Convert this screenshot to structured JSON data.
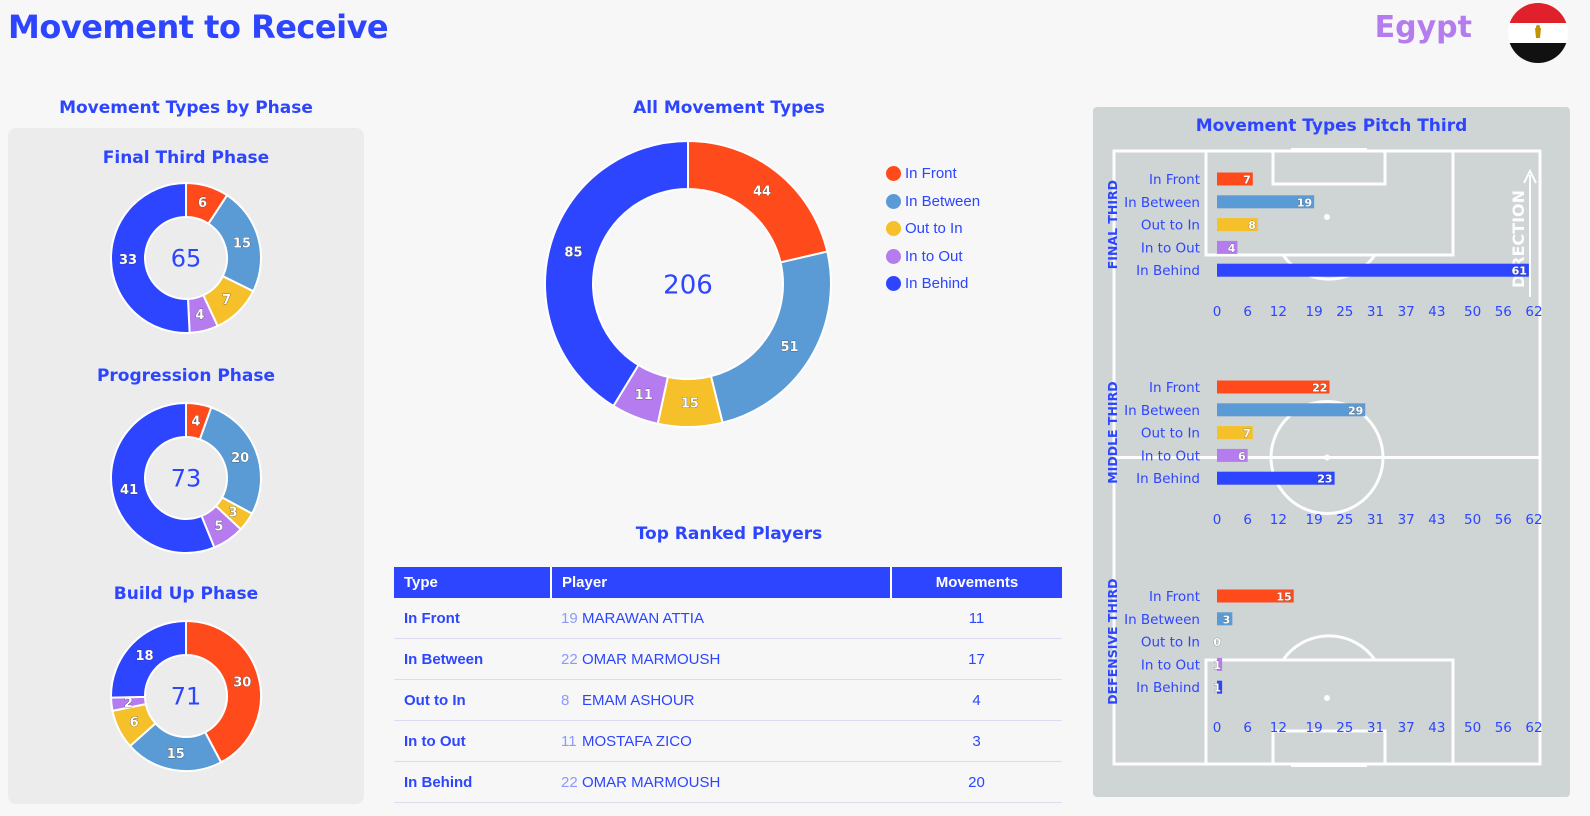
{
  "header": {
    "title": "Movement to Receive",
    "country": "Egypt"
  },
  "sections": {
    "phase_title": "Movement Types by Phase",
    "all_title": "All Movement Types",
    "pitch_title": "Movement Types Pitch Third",
    "players_title": "Top Ranked Players"
  },
  "colors": {
    "in_front": "#ff4a1c",
    "in_between": "#5b9bd5",
    "out_to_in": "#f5c02a",
    "in_to_out": "#b57cf0",
    "in_behind": "#2d45ff"
  },
  "legend": [
    "In Front",
    "In Between",
    "Out to In",
    "In to Out",
    "In Behind"
  ],
  "chart_data": [
    {
      "type": "pie",
      "title": "Final Third Phase",
      "total": "65",
      "categories": [
        "In Front",
        "In Between",
        "Out to In",
        "In to Out",
        "In Behind"
      ],
      "values": [
        6,
        15,
        7,
        4,
        33
      ]
    },
    {
      "type": "pie",
      "title": "Progression Phase",
      "total": "73",
      "categories": [
        "In Front",
        "In Between",
        "Out to In",
        "In to Out",
        "In Behind"
      ],
      "values": [
        4,
        20,
        3,
        5,
        41
      ]
    },
    {
      "type": "pie",
      "title": "Build Up Phase",
      "total": "71",
      "categories": [
        "In Front",
        "In Between",
        "Out to In",
        "In to Out",
        "In Behind"
      ],
      "values": [
        30,
        15,
        6,
        2,
        18
      ]
    },
    {
      "type": "pie",
      "title": "All Movement Types",
      "total": "206",
      "categories": [
        "In Front",
        "In Between",
        "Out to In",
        "In to Out",
        "In Behind"
      ],
      "values": [
        44,
        51,
        15,
        11,
        85
      ]
    },
    {
      "type": "bar",
      "title": "FINAL THIRD",
      "categories": [
        "In Front",
        "In Between",
        "Out to In",
        "In to Out",
        "In Behind"
      ],
      "values": [
        7,
        19,
        8,
        4,
        61
      ],
      "xlim": [
        0,
        62
      ],
      "xticks": [
        "0",
        "6",
        "12",
        "19",
        "25",
        "31",
        "37",
        "43",
        "50",
        "56",
        "62"
      ]
    },
    {
      "type": "bar",
      "title": "MIDDLE THIRD",
      "categories": [
        "In Front",
        "In Between",
        "Out to In",
        "In to Out",
        "In Behind"
      ],
      "values": [
        22,
        29,
        7,
        6,
        23
      ],
      "xlim": [
        0,
        62
      ],
      "xticks": [
        "0",
        "6",
        "12",
        "19",
        "25",
        "31",
        "37",
        "43",
        "50",
        "56",
        "62"
      ]
    },
    {
      "type": "bar",
      "title": "DEFENSIVE THIRD",
      "categories": [
        "In Front",
        "In Between",
        "Out to In",
        "In to Out",
        "In Behind"
      ],
      "values": [
        15,
        3,
        0,
        1,
        1
      ],
      "xlim": [
        0,
        62
      ],
      "xticks": [
        "0",
        "6",
        "12",
        "19",
        "25",
        "31",
        "37",
        "43",
        "50",
        "56",
        "62"
      ]
    }
  ],
  "pitch_direction_label": "DIRECTION",
  "players_table": {
    "headers": [
      "Type",
      "Player",
      "Movements"
    ],
    "rows": [
      {
        "type": "In Front",
        "number": "19",
        "player": "MARAWAN ATTIA",
        "movements": "11"
      },
      {
        "type": "In Between",
        "number": "22",
        "player": "OMAR MARMOUSH",
        "movements": "17"
      },
      {
        "type": "Out to In",
        "number": "8",
        "player": "EMAM ASHOUR",
        "movements": "4"
      },
      {
        "type": "In to Out",
        "number": "11",
        "player": "MOSTAFA ZICO",
        "movements": "3"
      },
      {
        "type": "In Behind",
        "number": "22",
        "player": "OMAR MARMOUSH",
        "movements": "20"
      }
    ]
  }
}
